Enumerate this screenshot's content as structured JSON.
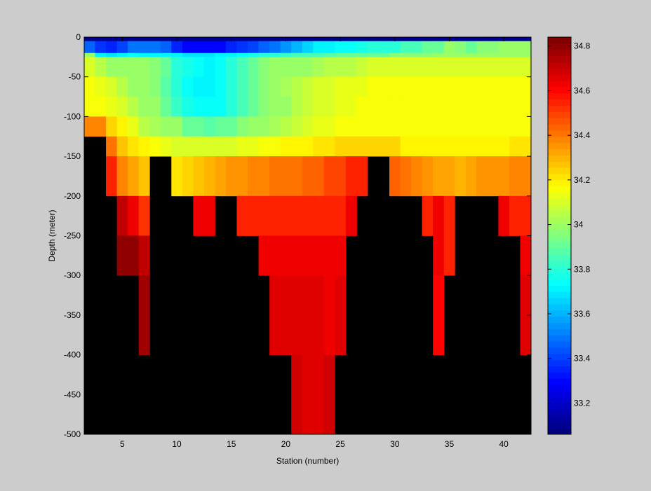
{
  "chart_data": [
    {
      "type": "heatmap",
      "title": "",
      "xlabel": "Station (number)",
      "ylabel": "Depth (meter)",
      "xlim": [
        1.5,
        42.5
      ],
      "ylim": [
        -500,
        0
      ],
      "x_ticks": [
        5,
        10,
        15,
        20,
        25,
        30,
        35,
        40
      ],
      "y_ticks": [
        0,
        -50,
        -100,
        -150,
        -200,
        -250,
        -300,
        -350,
        -400,
        -450,
        -500
      ],
      "x_tick_labels": [
        "5",
        "10",
        "15",
        "20",
        "25",
        "30",
        "35",
        "40"
      ],
      "y_tick_labels": [
        "0",
        "-50",
        "-100",
        "-150",
        "-200",
        "-250",
        "-300",
        "-350",
        "-400",
        "-450",
        "-500"
      ],
      "missing_color": "#000000",
      "colormap": "jet",
      "stations": [
        2,
        3,
        4,
        5,
        6,
        7,
        8,
        9,
        10,
        11,
        12,
        13,
        14,
        15,
        16,
        17,
        18,
        19,
        20,
        21,
        22,
        23,
        24,
        25,
        26,
        27,
        28,
        29,
        30,
        31,
        32,
        33,
        34,
        35,
        36,
        37,
        38,
        39,
        40,
        41,
        42
      ],
      "depth_bands": [
        {
          "top": 0,
          "bottom": -5
        },
        {
          "top": -5,
          "bottom": -20
        },
        {
          "top": -20,
          "bottom": -25
        },
        {
          "top": -25,
          "bottom": -50
        },
        {
          "top": -50,
          "bottom": -75
        },
        {
          "top": -75,
          "bottom": -100
        },
        {
          "top": -100,
          "bottom": -125
        },
        {
          "top": -125,
          "bottom": -150
        },
        {
          "top": -150,
          "bottom": -200
        },
        {
          "top": -200,
          "bottom": -250
        },
        {
          "top": -250,
          "bottom": -300
        },
        {
          "top": -300,
          "bottom": -400
        },
        {
          "top": -400,
          "bottom": -500
        }
      ],
      "values": [
        [
          33.1,
          33.1,
          33.1,
          33.1,
          33.1,
          33.1,
          33.1,
          33.1,
          33.1,
          33.1,
          33.1,
          33.1,
          33.1,
          33.1,
          33.1,
          33.1,
          33.1,
          33.1,
          33.1,
          33.1,
          33.1,
          33.1,
          33.1,
          33.1,
          33.1,
          33.1,
          33.1,
          33.1,
          33.1,
          33.1,
          33.1,
          33.1,
          33.1,
          33.1,
          33.1,
          33.1,
          33.1,
          33.1,
          33.1,
          33.1,
          33.1
        ],
        [
          33.45,
          33.38,
          33.35,
          33.4,
          33.5,
          33.5,
          33.5,
          33.45,
          33.35,
          33.3,
          33.3,
          33.3,
          33.3,
          33.35,
          33.38,
          33.4,
          33.45,
          33.5,
          33.55,
          33.6,
          33.65,
          33.7,
          33.72,
          33.75,
          33.75,
          33.78,
          33.8,
          33.8,
          33.8,
          33.85,
          33.85,
          33.9,
          33.9,
          34.0,
          33.95,
          33.9,
          33.95,
          33.95,
          34.0,
          34.0,
          34.0
        ],
        [
          34.0,
          33.7,
          33.68,
          33.7,
          33.75,
          33.72,
          33.7,
          33.72,
          33.7,
          33.68,
          33.68,
          33.68,
          33.7,
          33.72,
          33.75,
          33.78,
          33.8,
          33.8,
          33.82,
          33.85,
          33.85,
          33.85,
          33.88,
          33.9,
          33.9,
          33.9,
          33.92,
          33.92,
          33.95,
          33.95,
          33.95,
          33.95,
          33.98,
          34.0,
          34.0,
          34.0,
          34.0,
          34.0,
          34.0,
          34.0,
          34.0
        ],
        [
          34.1,
          34.05,
          34.0,
          34.0,
          34.0,
          34.0,
          33.95,
          33.9,
          33.8,
          33.78,
          33.75,
          33.72,
          33.75,
          33.8,
          33.85,
          33.9,
          33.95,
          34.0,
          34.0,
          34.0,
          34.0,
          34.02,
          34.05,
          34.05,
          34.05,
          34.08,
          34.1,
          34.1,
          34.1,
          34.1,
          34.1,
          34.1,
          34.1,
          34.1,
          34.1,
          34.1,
          34.1,
          34.1,
          34.1,
          34.1,
          34.1
        ],
        [
          34.15,
          34.12,
          34.1,
          34.05,
          34.0,
          34.0,
          33.95,
          33.88,
          33.8,
          33.75,
          33.72,
          33.72,
          33.75,
          33.8,
          33.85,
          33.9,
          33.95,
          34.0,
          34.02,
          34.05,
          34.08,
          34.1,
          34.1,
          34.12,
          34.12,
          34.12,
          34.15,
          34.15,
          34.15,
          34.15,
          34.15,
          34.15,
          34.15,
          34.15,
          34.15,
          34.15,
          34.15,
          34.15,
          34.15,
          34.15,
          34.15
        ],
        [
          34.15,
          34.15,
          34.12,
          34.1,
          34.05,
          34.0,
          33.98,
          33.9,
          33.82,
          33.78,
          33.75,
          33.75,
          33.75,
          33.8,
          33.85,
          33.9,
          33.95,
          34.0,
          34.0,
          34.05,
          34.08,
          34.1,
          34.1,
          34.12,
          34.12,
          34.15,
          34.15,
          34.15,
          34.15,
          34.15,
          34.15,
          34.15,
          34.15,
          34.15,
          34.15,
          34.15,
          34.15,
          34.15,
          34.15,
          34.15,
          34.15
        ],
        [
          34.38,
          34.38,
          34.25,
          34.18,
          34.12,
          34.05,
          34.02,
          34.0,
          33.98,
          33.92,
          33.9,
          33.88,
          33.9,
          33.92,
          33.95,
          33.98,
          34.0,
          34.02,
          34.05,
          34.08,
          34.1,
          34.12,
          34.12,
          34.15,
          34.15,
          34.15,
          34.15,
          34.15,
          34.15,
          34.15,
          34.15,
          34.15,
          34.15,
          34.15,
          34.15,
          34.15,
          34.15,
          34.15,
          34.15,
          34.15,
          34.15
        ],
        [
          null,
          null,
          34.4,
          34.28,
          34.22,
          34.18,
          34.15,
          34.12,
          34.1,
          34.1,
          34.1,
          34.1,
          34.1,
          34.1,
          34.12,
          34.12,
          34.15,
          34.15,
          34.18,
          34.2,
          34.2,
          34.22,
          34.22,
          34.25,
          34.25,
          34.25,
          34.25,
          34.25,
          34.25,
          34.2,
          34.2,
          34.2,
          34.2,
          34.2,
          34.2,
          34.2,
          34.2,
          34.2,
          34.2,
          34.22,
          34.22
        ],
        [
          null,
          null,
          34.55,
          34.38,
          34.32,
          34.28,
          null,
          null,
          34.22,
          34.25,
          34.28,
          34.3,
          34.32,
          34.35,
          34.35,
          34.38,
          34.38,
          34.4,
          34.42,
          34.42,
          34.45,
          34.45,
          34.48,
          34.5,
          34.55,
          34.55,
          null,
          null,
          34.45,
          34.4,
          34.38,
          34.35,
          34.32,
          34.32,
          34.3,
          34.32,
          34.35,
          34.35,
          34.35,
          34.38,
          34.38
        ],
        [
          null,
          null,
          null,
          34.72,
          34.62,
          34.52,
          null,
          null,
          null,
          null,
          34.62,
          34.62,
          null,
          null,
          34.56,
          34.56,
          34.56,
          34.56,
          34.56,
          34.56,
          34.56,
          34.56,
          34.56,
          34.56,
          34.62,
          null,
          null,
          null,
          null,
          null,
          null,
          34.56,
          34.62,
          34.56,
          null,
          null,
          null,
          null,
          34.62,
          34.56,
          34.56
        ],
        [
          null,
          null,
          null,
          34.8,
          34.8,
          34.72,
          null,
          null,
          null,
          null,
          null,
          null,
          null,
          null,
          null,
          null,
          34.62,
          34.62,
          34.62,
          34.62,
          34.62,
          34.62,
          34.62,
          34.62,
          null,
          null,
          null,
          null,
          null,
          null,
          null,
          null,
          34.62,
          34.56,
          null,
          null,
          null,
          null,
          null,
          null,
          34.62
        ],
        [
          null,
          null,
          null,
          null,
          null,
          34.78,
          null,
          null,
          null,
          null,
          null,
          null,
          null,
          null,
          null,
          null,
          null,
          34.65,
          34.65,
          34.65,
          34.65,
          34.65,
          34.62,
          34.65,
          null,
          null,
          null,
          null,
          null,
          null,
          null,
          null,
          34.6,
          null,
          null,
          null,
          null,
          null,
          null,
          null,
          34.65
        ],
        [
          null,
          null,
          null,
          null,
          null,
          null,
          null,
          null,
          null,
          null,
          null,
          null,
          null,
          null,
          null,
          null,
          null,
          null,
          null,
          34.7,
          34.65,
          34.65,
          34.68,
          null,
          null,
          null,
          null,
          null,
          null,
          null,
          null,
          null,
          null,
          null,
          null,
          null,
          null,
          null,
          null,
          null,
          null
        ]
      ]
    },
    {
      "type": "colorbar",
      "colormap": "jet",
      "clim": [
        33.06,
        34.84
      ],
      "ticks": [
        33.2,
        33.4,
        33.6,
        33.8,
        34,
        34.2,
        34.4,
        34.6,
        34.8
      ],
      "tick_labels": [
        "33.2",
        "33.4",
        "33.6",
        "33.8",
        "34",
        "34.2",
        "34.4",
        "34.6",
        "34.8"
      ]
    }
  ]
}
